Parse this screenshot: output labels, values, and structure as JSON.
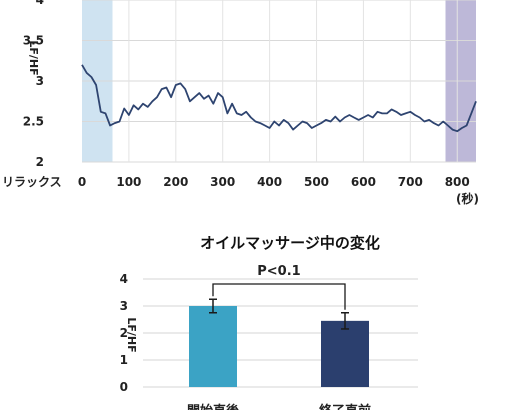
{
  "chart_data": [
    {
      "type": "line",
      "ylabel": "LF/HF",
      "ylim": [
        2,
        4
      ],
      "xlim": [
        0,
        840
      ],
      "yticks": [
        "2",
        "2.5",
        "3",
        "3.5",
        "4"
      ],
      "xticks": [
        "0",
        "100",
        "200",
        "300",
        "400",
        "500",
        "600",
        "700",
        "800"
      ],
      "x_prefix_label": "リラックス",
      "x_unit_label": "(秒)",
      "grid": true,
      "regions": [
        {
          "start": 0,
          "end": 65,
          "color": "#cfe3f1"
        },
        {
          "start": 775,
          "end": 840,
          "color": "#bdb8d8"
        }
      ],
      "line_color": "#2e4470",
      "x": [
        0,
        10,
        20,
        30,
        40,
        50,
        60,
        70,
        80,
        90,
        100,
        110,
        120,
        130,
        140,
        150,
        160,
        170,
        180,
        190,
        200,
        210,
        220,
        230,
        240,
        250,
        260,
        270,
        280,
        290,
        300,
        310,
        320,
        330,
        340,
        350,
        360,
        370,
        380,
        390,
        400,
        410,
        420,
        430,
        440,
        450,
        460,
        470,
        480,
        490,
        500,
        510,
        520,
        530,
        540,
        550,
        560,
        570,
        580,
        590,
        600,
        610,
        620,
        630,
        640,
        650,
        660,
        670,
        680,
        690,
        700,
        710,
        720,
        730,
        740,
        750,
        760,
        770,
        780,
        790,
        800,
        810,
        820,
        830,
        840
      ],
      "values": [
        3.2,
        3.1,
        3.05,
        2.95,
        2.62,
        2.6,
        2.45,
        2.48,
        2.5,
        2.66,
        2.58,
        2.7,
        2.65,
        2.72,
        2.68,
        2.75,
        2.8,
        2.9,
        2.92,
        2.8,
        2.95,
        2.97,
        2.9,
        2.75,
        2.8,
        2.85,
        2.78,
        2.82,
        2.72,
        2.85,
        2.8,
        2.6,
        2.72,
        2.6,
        2.58,
        2.62,
        2.55,
        2.5,
        2.48,
        2.45,
        2.42,
        2.5,
        2.45,
        2.52,
        2.48,
        2.4,
        2.45,
        2.5,
        2.48,
        2.42,
        2.45,
        2.48,
        2.52,
        2.5,
        2.56,
        2.5,
        2.55,
        2.58,
        2.55,
        2.52,
        2.55,
        2.58,
        2.55,
        2.62,
        2.6,
        2.6,
        2.65,
        2.62,
        2.58,
        2.6,
        2.62,
        2.58,
        2.55,
        2.5,
        2.52,
        2.48,
        2.45,
        2.5,
        2.45,
        2.4,
        2.38,
        2.42,
        2.45,
        2.6,
        2.75
      ]
    },
    {
      "type": "bar",
      "title": "オイルマッサージ中の変化",
      "ylabel": "LF/HF",
      "ylim": [
        0,
        4
      ],
      "yticks": [
        "0",
        "1",
        "2",
        "3",
        "4"
      ],
      "grid": true,
      "categories": [
        "開始直後",
        "終了直前"
      ],
      "values": [
        3.0,
        2.45
      ],
      "errors": [
        0.25,
        0.3
      ],
      "colors": [
        "#3ba3c5",
        "#2b3f6e"
      ],
      "significance": "P<0.1"
    }
  ]
}
